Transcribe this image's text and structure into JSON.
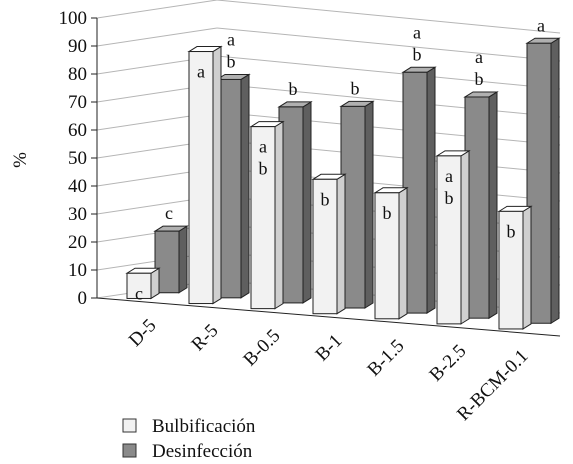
{
  "chart_data": {
    "type": "bar",
    "title": "",
    "xlabel": "",
    "ylabel": "%",
    "ylim": [
      0,
      100
    ],
    "yticks": [
      0,
      10,
      20,
      30,
      40,
      50,
      60,
      70,
      80,
      90,
      100
    ],
    "grid": true,
    "legend_position": "bottom-left",
    "categories": [
      "D-5",
      "R-5",
      "B-0.5",
      "B-1",
      "B-1.5",
      "B-2.5",
      "R-BCM-0.1"
    ],
    "series": [
      {
        "name": "Bulbificación",
        "color": "#f2f2f2",
        "values": [
          9,
          90,
          65,
          48,
          45,
          60,
          42
        ],
        "labels": [
          "c",
          "a",
          "a\nb",
          "b",
          "b",
          "a\nb",
          "b"
        ]
      },
      {
        "name": "Desinfección",
        "color": "#8a8a8a",
        "values": [
          22,
          78,
          70,
          72,
          86,
          79,
          100
        ],
        "labels": [
          "c",
          "a\nb",
          "b",
          "b",
          "a\nb",
          "a\nb",
          "a"
        ]
      }
    ]
  }
}
